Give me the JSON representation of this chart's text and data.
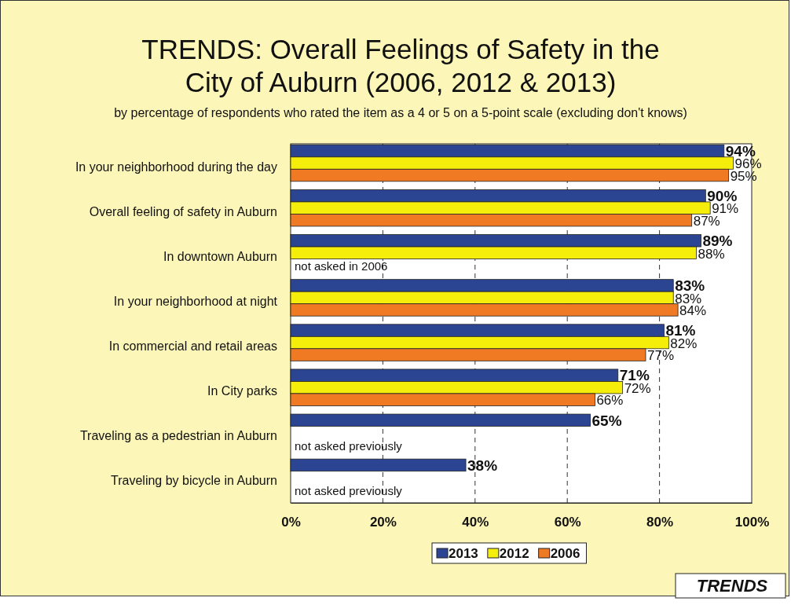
{
  "chart_data": {
    "type": "bar",
    "orientation": "horizontal",
    "title": "TRENDS:  Overall Feelings of Safety in the City of Auburn (2006, 2012 & 2013)",
    "subtitle": "by percentage of respondents who rated the item as a 4 or 5 on a 5-point scale (excluding don't knows)",
    "categories": [
      "In your neighborhood during the day",
      "Overall feeling of safety in Auburn",
      "In downtown Auburn",
      "In your neighborhood at night",
      "In commercial and retail areas",
      "In City parks",
      "Traveling as a pedestrian in Auburn",
      "Traveling by bicycle in Auburn"
    ],
    "series": [
      {
        "name": "2013",
        "color": "#2b4593",
        "values": [
          94,
          90,
          89,
          83,
          81,
          71,
          65,
          38
        ],
        "value_labels": [
          "94%",
          "90%",
          "89%",
          "83%",
          "81%",
          "71%",
          "65%",
          "38%"
        ]
      },
      {
        "name": "2012",
        "color": "#f5ee0a",
        "values": [
          96,
          91,
          88,
          83,
          82,
          72,
          null,
          null
        ],
        "value_labels": [
          "96%",
          "91%",
          "88%",
          "83%",
          "82%",
          "72%",
          null,
          null
        ]
      },
      {
        "name": "2006",
        "color": "#f07a23",
        "values": [
          95,
          87,
          null,
          84,
          77,
          66,
          null,
          null
        ],
        "value_labels": [
          "95%",
          "87%",
          null,
          "84%",
          "77%",
          "66%",
          null,
          null
        ]
      }
    ],
    "xlim": [
      0,
      100
    ],
    "xticks": [
      {
        "value": 0,
        "label": "0%"
      },
      {
        "value": 20,
        "label": "20%"
      },
      {
        "value": 40,
        "label": "40%"
      },
      {
        "value": 60,
        "label": "60%"
      },
      {
        "value": 80,
        "label": "80%"
      },
      {
        "value": 100,
        "label": "100%"
      }
    ],
    "grid": "x",
    "legend": "bottom",
    "annotations": [
      "not asked in 2006",
      "not asked previously",
      "not asked previously",
      "TRENDS"
    ]
  }
}
